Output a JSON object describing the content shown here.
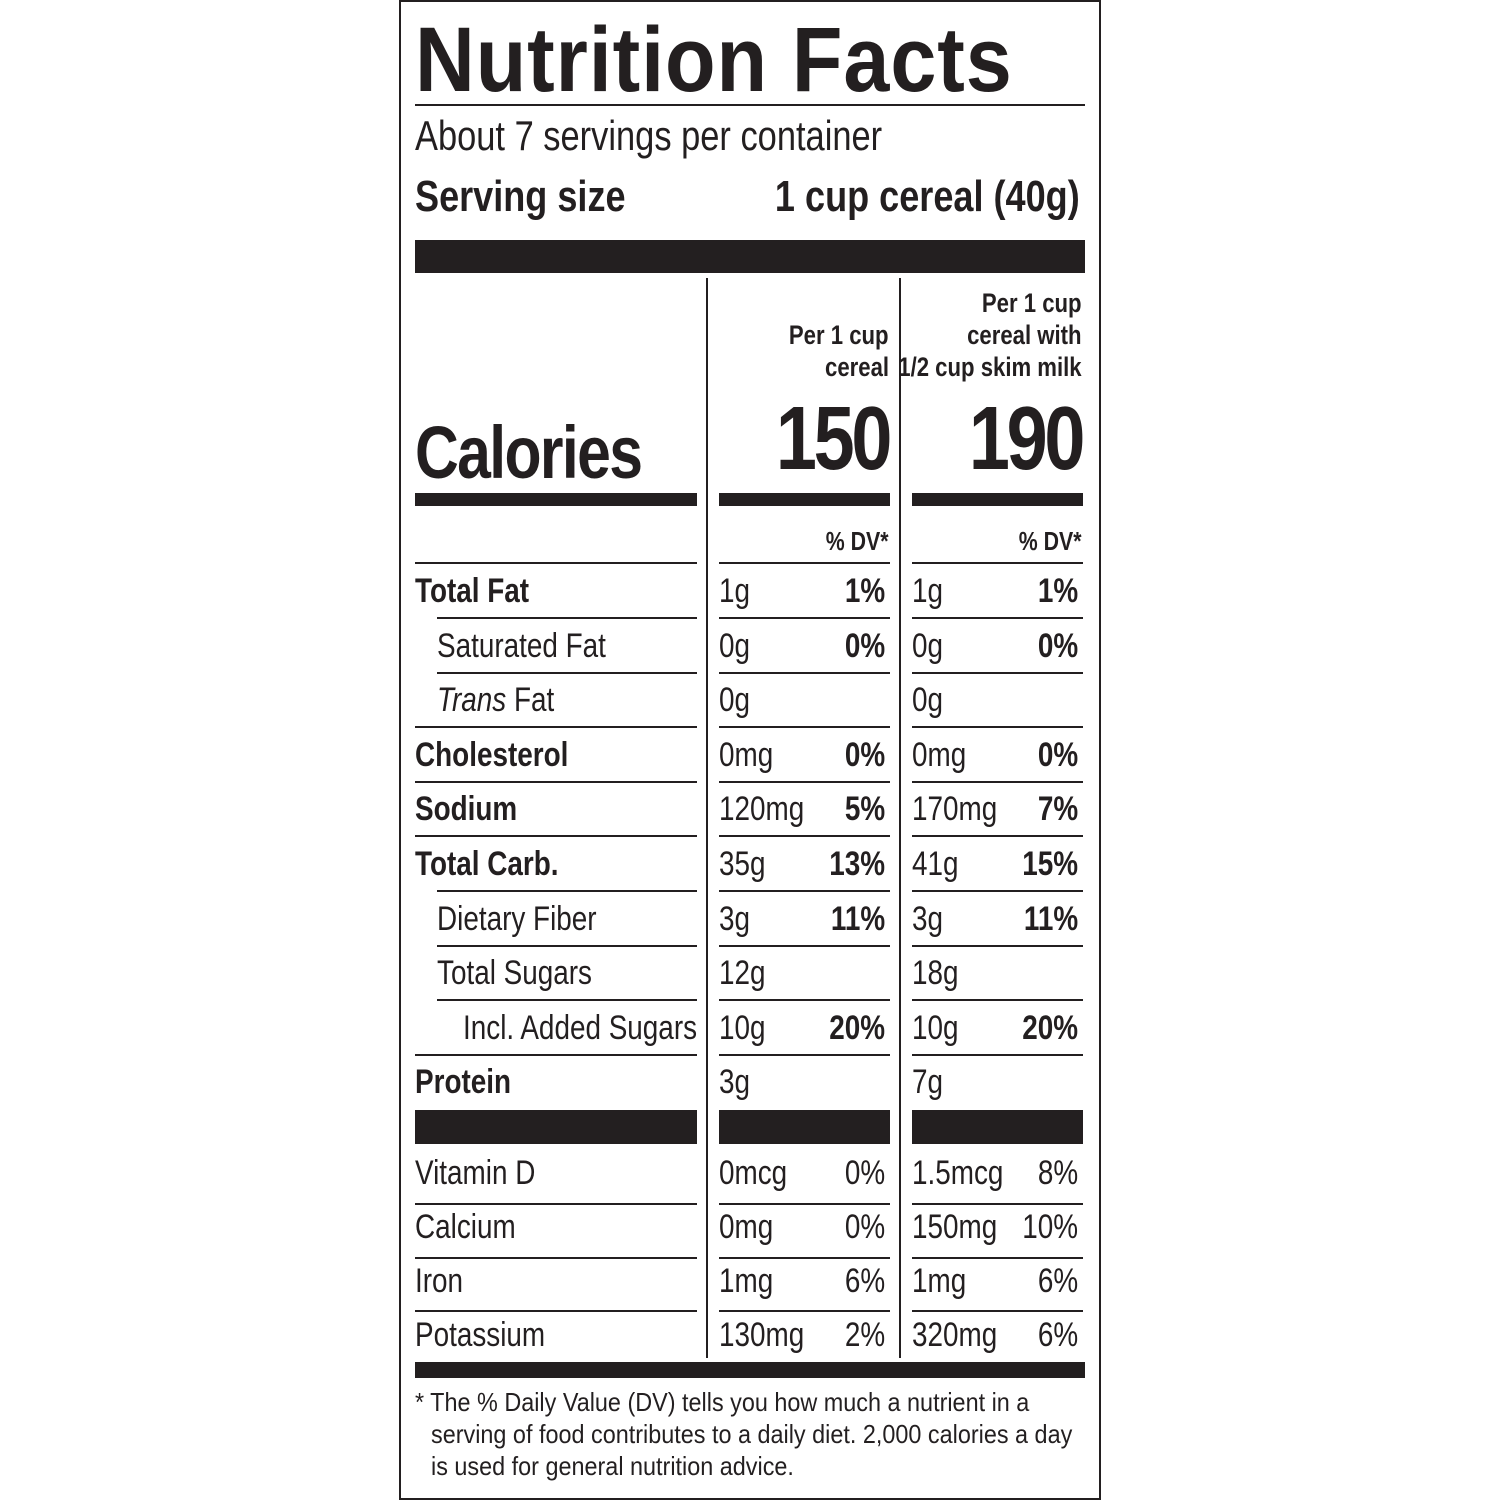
{
  "title": "Nutrition Facts",
  "servings_per_container": "About 7 servings per container",
  "serving_size": {
    "label": "Serving size",
    "value": "1 cup cereal (40g)"
  },
  "columns": [
    {
      "header": [
        "Per 1 cup",
        "cereal"
      ],
      "calories": "150"
    },
    {
      "header": [
        "Per 1 cup",
        "cereal with",
        "1/2 cup skim milk"
      ],
      "calories": "190"
    }
  ],
  "calories_label": "Calories",
  "dv_label": "% DV*",
  "nutrients": [
    {
      "name": "Total Fat",
      "bold": true,
      "indent": 0,
      "c1": "1g",
      "d1": "1%",
      "c2": "1g",
      "d2": "1%"
    },
    {
      "name": "Saturated Fat",
      "bold": false,
      "indent": 1,
      "c1": "0g",
      "d1": "0%",
      "c2": "0g",
      "d2": "0%"
    },
    {
      "name": "Trans Fat",
      "italic_prefix": "Trans",
      "bold": false,
      "indent": 1,
      "c1": "0g",
      "d1": "",
      "c2": "0g",
      "d2": ""
    },
    {
      "name": "Cholesterol",
      "bold": true,
      "indent": 0,
      "c1": "0mg",
      "d1": "0%",
      "c2": "0mg",
      "d2": "0%"
    },
    {
      "name": "Sodium",
      "bold": true,
      "indent": 0,
      "c1": "120mg",
      "d1": "5%",
      "c2": "170mg",
      "d2": "7%"
    },
    {
      "name": "Total Carb.",
      "bold": true,
      "indent": 0,
      "c1": "35g",
      "d1": "13%",
      "c2": "41g",
      "d2": "15%"
    },
    {
      "name": "Dietary Fiber",
      "bold": false,
      "indent": 1,
      "c1": "3g",
      "d1": "11%",
      "c2": "3g",
      "d2": "11%"
    },
    {
      "name": "Total Sugars",
      "bold": false,
      "indent": 1,
      "c1": "12g",
      "d1": "",
      "c2": "18g",
      "d2": ""
    },
    {
      "name": "Incl. Added Sugars",
      "bold": false,
      "indent": 2,
      "c1": "10g",
      "d1": "20%",
      "c2": "10g",
      "d2": "20%"
    },
    {
      "name": "Protein",
      "bold": true,
      "indent": 0,
      "c1": "3g",
      "d1": "",
      "c2": "7g",
      "d2": ""
    }
  ],
  "vitamins": [
    {
      "name": "Vitamin D",
      "c1": "0mcg",
      "d1": "0%",
      "c2": "1.5mcg",
      "d2": "8%"
    },
    {
      "name": "Calcium",
      "c1": "0mg",
      "d1": "0%",
      "c2": "150mg",
      "d2": "10%"
    },
    {
      "name": "Iron",
      "c1": "1mg",
      "d1": "6%",
      "c2": "1mg",
      "d2": "6%"
    },
    {
      "name": "Potassium",
      "c1": "130mg",
      "d1": "2%",
      "c2": "320mg",
      "d2": "6%"
    }
  ],
  "footnote": [
    "* The % Daily Value (DV) tells you how much a nutrient in a",
    "serving of food contributes to a daily diet. 2,000 calories a day",
    "is used for general nutrition advice."
  ]
}
